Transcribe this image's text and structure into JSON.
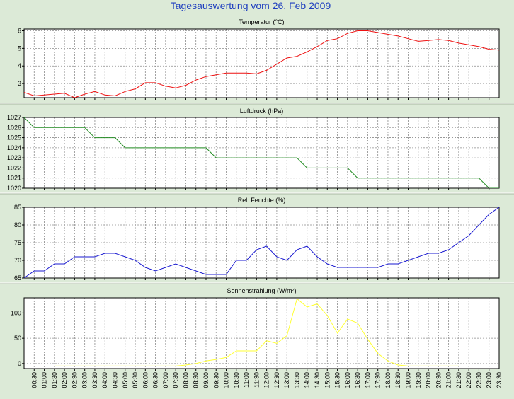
{
  "title": "Tagesauswertung vom 26. Feb 2009",
  "colors": {
    "background": "#dcead7",
    "plot": "#ffffff",
    "title": "#1f3fbf",
    "grid": "#8c8c8c",
    "axis": "#000000"
  },
  "time_labels": [
    "00:30",
    "01:00",
    "01:30",
    "02:00",
    "02:30",
    "03:00",
    "03:30",
    "04:00",
    "04:30",
    "05:00",
    "05:30",
    "06:00",
    "06:30",
    "07:00",
    "07:30",
    "08:00",
    "08:30",
    "09:00",
    "09:30",
    "10:00",
    "10:30",
    "11:00",
    "11:30",
    "12:00",
    "12:30",
    "13:00",
    "13:30",
    "14:00",
    "14:30",
    "15:00",
    "15:30",
    "16:00",
    "16:30",
    "17:00",
    "17:30",
    "18:00",
    "18:30",
    "19:00",
    "19:30",
    "20:00",
    "20:30",
    "21:00",
    "21:30",
    "22:00",
    "22:30",
    "23:00",
    "23:30"
  ],
  "chart_data": [
    {
      "type": "line",
      "title": "Temperatur (°C)",
      "color": "#ee1111",
      "ylim": [
        2.2,
        6.1
      ],
      "yticks": [
        "3",
        "4",
        "5",
        "6"
      ],
      "ytick_values": [
        3,
        4,
        5,
        6
      ],
      "grid": true,
      "x": [
        "00:00",
        "00:30",
        "01:00",
        "01:30",
        "02:00",
        "02:30",
        "03:00",
        "03:30",
        "04:00",
        "04:30",
        "05:00",
        "05:30",
        "06:00",
        "06:30",
        "07:00",
        "07:30",
        "08:00",
        "08:30",
        "09:00",
        "09:30",
        "10:00",
        "10:30",
        "11:00",
        "11:30",
        "12:00",
        "12:30",
        "13:00",
        "13:30",
        "14:00",
        "14:30",
        "15:00",
        "15:30",
        "16:00",
        "16:30",
        "17:00",
        "17:30",
        "18:00",
        "18:30",
        "19:00",
        "19:30",
        "20:00",
        "20:30",
        "21:00",
        "21:30",
        "22:00",
        "22:30",
        "23:00",
        "23:30"
      ],
      "values": [
        2.5,
        2.3,
        2.35,
        2.4,
        2.45,
        2.2,
        2.4,
        2.55,
        2.35,
        2.3,
        2.55,
        2.7,
        3.05,
        3.05,
        2.85,
        2.75,
        2.9,
        3.2,
        3.4,
        3.5,
        3.6,
        3.6,
        3.6,
        3.55,
        3.75,
        4.1,
        4.45,
        4.55,
        4.8,
        5.1,
        5.45,
        5.55,
        5.85,
        6.0,
        6.0,
        5.9,
        5.8,
        5.7,
        5.55,
        5.4,
        5.45,
        5.5,
        5.45,
        5.3,
        5.2,
        5.1,
        4.95,
        4.9
      ]
    },
    {
      "type": "line",
      "title": "Luftdruck (hPa)",
      "color": "#228b22",
      "ylim": [
        1020,
        1027
      ],
      "yticks": [
        "1020",
        "1021",
        "1022",
        "1023",
        "1024",
        "1025",
        "1026",
        "1027"
      ],
      "ytick_values": [
        1020,
        1021,
        1022,
        1023,
        1024,
        1025,
        1026,
        1027
      ],
      "grid": true,
      "x": [
        "00:00",
        "00:30",
        "01:00",
        "01:30",
        "02:00",
        "02:30",
        "03:00",
        "03:30",
        "04:00",
        "04:30",
        "05:00",
        "05:30",
        "06:00",
        "06:30",
        "07:00",
        "07:30",
        "08:00",
        "08:30",
        "09:00",
        "09:30",
        "10:00",
        "10:30",
        "11:00",
        "11:30",
        "12:00",
        "12:30",
        "13:00",
        "13:30",
        "14:00",
        "14:30",
        "15:00",
        "15:30",
        "16:00",
        "16:30",
        "17:00",
        "17:30",
        "18:00",
        "18:30",
        "19:00",
        "19:30",
        "20:00",
        "20:30",
        "21:00",
        "21:30",
        "22:00",
        "22:30",
        "23:00",
        "23:30"
      ],
      "values": [
        1027,
        1026,
        1026,
        1026,
        1026,
        1026,
        1026,
        1025,
        1025,
        1025,
        1024,
        1024,
        1024,
        1024,
        1024,
        1024,
        1024,
        1024,
        1024,
        1023,
        1023,
        1023,
        1023,
        1023,
        1023,
        1023,
        1023,
        1023,
        1022,
        1022,
        1022,
        1022,
        1022,
        1021,
        1021,
        1021,
        1021,
        1021,
        1021,
        1021,
        1021,
        1021,
        1021,
        1021,
        1021,
        1021,
        1020,
        1020
      ]
    },
    {
      "type": "line",
      "title": "Rel. Feuchte (%)",
      "color": "#1a1ad0",
      "ylim": [
        65,
        85
      ],
      "yticks": [
        "65",
        "70",
        "75",
        "80",
        "85"
      ],
      "ytick_values": [
        65,
        70,
        75,
        80,
        85
      ],
      "grid": true,
      "x": [
        "00:00",
        "00:30",
        "01:00",
        "01:30",
        "02:00",
        "02:30",
        "03:00",
        "03:30",
        "04:00",
        "04:30",
        "05:00",
        "05:30",
        "06:00",
        "06:30",
        "07:00",
        "07:30",
        "08:00",
        "08:30",
        "09:00",
        "09:30",
        "10:00",
        "10:30",
        "11:00",
        "11:30",
        "12:00",
        "12:30",
        "13:00",
        "13:30",
        "14:00",
        "14:30",
        "15:00",
        "15:30",
        "16:00",
        "16:30",
        "17:00",
        "17:30",
        "18:00",
        "18:30",
        "19:00",
        "19:30",
        "20:00",
        "20:30",
        "21:00",
        "21:30",
        "22:00",
        "22:30",
        "23:00",
        "23:30"
      ],
      "values": [
        65,
        67,
        67,
        69,
        69,
        71,
        71,
        71,
        72,
        72,
        71,
        70,
        68,
        67,
        68,
        69,
        68,
        67,
        66,
        66,
        66,
        70,
        70,
        73,
        74,
        71,
        70,
        73,
        74,
        71,
        69,
        68,
        68,
        68,
        68,
        68,
        69,
        69,
        70,
        71,
        72,
        72,
        73,
        75,
        77,
        80,
        83,
        85
      ]
    },
    {
      "type": "line",
      "title": "Sonnenstrahlung (W/m²)",
      "color": "#ffff33",
      "ylim": [
        -10,
        130
      ],
      "yticks": [
        "0",
        "50",
        "100"
      ],
      "ytick_values": [
        0,
        50,
        100
      ],
      "grid": true,
      "x": [
        "00:00",
        "00:30",
        "01:00",
        "01:30",
        "02:00",
        "02:30",
        "03:00",
        "03:30",
        "04:00",
        "04:30",
        "05:00",
        "05:30",
        "06:00",
        "06:30",
        "07:00",
        "07:30",
        "08:00",
        "08:30",
        "09:00",
        "09:30",
        "10:00",
        "10:30",
        "11:00",
        "11:30",
        "12:00",
        "12:30",
        "13:00",
        "13:30",
        "14:00",
        "14:30",
        "15:00",
        "15:30",
        "16:00",
        "16:30",
        "17:00",
        "17:30",
        "18:00",
        "18:30",
        "19:00",
        "19:30",
        "20:00",
        "20:30",
        "21:00",
        "21:30",
        "22:00",
        "22:30",
        "23:00",
        "23:30"
      ],
      "values": [
        null,
        null,
        null,
        -5,
        -5,
        -5,
        -5,
        -5,
        -5,
        -5,
        -5,
        -5,
        -5,
        -5,
        -5,
        -5,
        -3,
        0,
        5,
        8,
        12,
        25,
        25,
        25,
        45,
        40,
        55,
        128,
        112,
        118,
        95,
        60,
        88,
        80,
        48,
        20,
        5,
        -3,
        -5,
        -5,
        -5,
        -5,
        -5,
        -5,
        null,
        null,
        null,
        null
      ]
    }
  ]
}
